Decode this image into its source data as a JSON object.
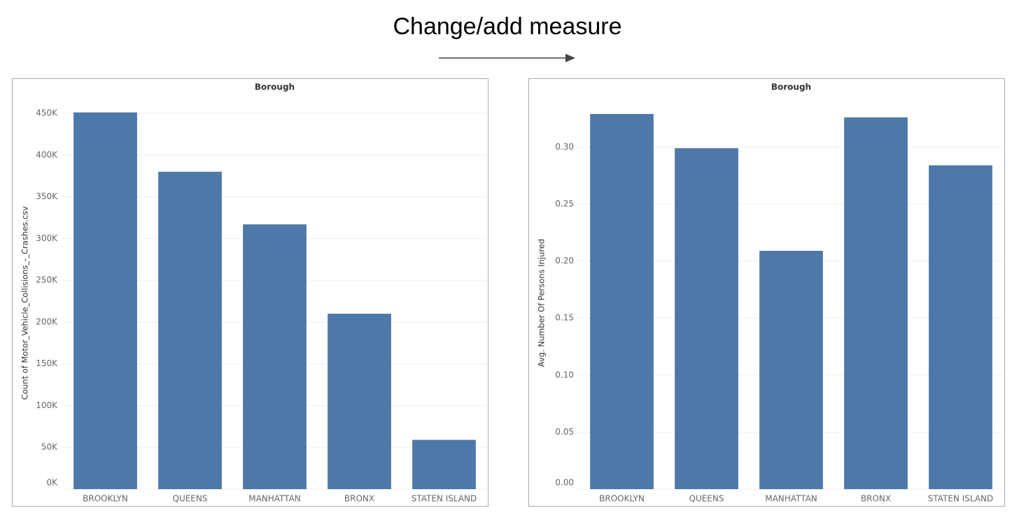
{
  "title": "Change/add measure",
  "chart_data": [
    {
      "type": "bar",
      "title": "Borough",
      "y_label": "Count of Motor_Vehicle_Collisions_-_Crashes.csv",
      "categories": [
        "BROOKLYN",
        "QUEENS",
        "MANHATTAN",
        "BRONX",
        "STATEN ISLAND"
      ],
      "values": [
        451000,
        380000,
        317000,
        210000,
        59000
      ],
      "color": "#4e78a8",
      "ylim": [
        0,
        471000
      ],
      "yticks": [
        {
          "value": 0,
          "label": "0K"
        },
        {
          "value": 50000,
          "label": "50K"
        },
        {
          "value": 100000,
          "label": "100K"
        },
        {
          "value": 150000,
          "label": "150K"
        },
        {
          "value": 200000,
          "label": "200K"
        },
        {
          "value": 250000,
          "label": "250K"
        },
        {
          "value": 300000,
          "label": "300K"
        },
        {
          "value": 350000,
          "label": "350K"
        },
        {
          "value": 400000,
          "label": "400K"
        },
        {
          "value": 450000,
          "label": "450K"
        }
      ],
      "grid": true
    },
    {
      "type": "bar",
      "title": "Borough",
      "y_label": "Avg. Number Of Persons Injured",
      "categories": [
        "BROOKLYN",
        "QUEENS",
        "MANHATTAN",
        "BRONX",
        "STATEN ISLAND"
      ],
      "values": [
        0.329,
        0.299,
        0.209,
        0.326,
        0.284
      ],
      "color": "#4e78a8",
      "ylim": [
        0,
        0.345
      ],
      "yticks": [
        {
          "value": 0,
          "label": "0.00"
        },
        {
          "value": 0.05,
          "label": "0.05"
        },
        {
          "value": 0.1,
          "label": "0.10"
        },
        {
          "value": 0.15,
          "label": "0.15"
        },
        {
          "value": 0.2,
          "label": "0.20"
        },
        {
          "value": 0.25,
          "label": "0.25"
        },
        {
          "value": 0.3,
          "label": "0.30"
        }
      ],
      "grid": true
    }
  ]
}
